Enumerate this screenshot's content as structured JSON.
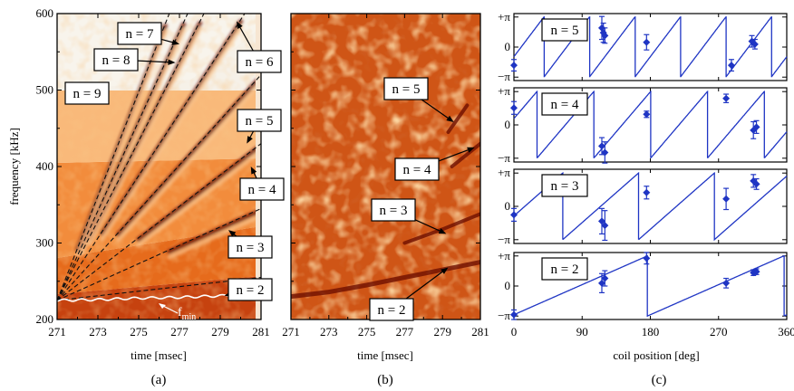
{
  "panel_a": {
    "label": "(a)",
    "xlabel": "time [msec]",
    "ylabel": "frequency [kHz]",
    "xticks": [
      "271",
      "273",
      "275",
      "277",
      "279",
      "281"
    ],
    "yticks": [
      "200",
      "300",
      "400",
      "500",
      "600"
    ],
    "fmin_label": "f",
    "fmin_sub": "min",
    "mode_labels": [
      "n = 2",
      "n = 3",
      "n = 4",
      "n = 5",
      "n = 6",
      "n = 7",
      "n = 8",
      "n = 9"
    ]
  },
  "panel_b": {
    "label": "(b)",
    "xlabel": "time [msec]",
    "xticks": [
      "271",
      "273",
      "275",
      "277",
      "279",
      "281"
    ],
    "mode_labels": [
      "n = 2",
      "n = 3",
      "n = 4",
      "n = 5"
    ]
  },
  "panel_c": {
    "label": "(c)",
    "xlabel": "coil position [deg]",
    "xticks": [
      "0",
      "90",
      "180",
      "270",
      "360"
    ],
    "yticks": [
      "+π",
      "0",
      "−π"
    ],
    "subplots": [
      "n = 5",
      "n = 4",
      "n = 3",
      "n = 2"
    ]
  },
  "colors": {
    "spectrogram_low": "#c23b0a",
    "spectrogram_mid": "#f08a3a",
    "spectrogram_high": "#fbd2a0",
    "ridge": "#6e0f00",
    "phase_line": "#1f35c4"
  },
  "chart_data": [
    {
      "type": "heatmap",
      "panel": "a",
      "xlabel": "time [msec]",
      "ylabel": "frequency [kHz]",
      "xlim": [
        271,
        281
      ],
      "ylim": [
        200,
        600
      ],
      "fmin_curve": {
        "t": [
          271,
          273,
          275,
          277,
          279,
          280
        ],
        "f": [
          225,
          226,
          228,
          229,
          231,
          232
        ]
      },
      "series": [
        {
          "name": "n = 2",
          "t": [
            271,
            281
          ],
          "f": [
            225,
            255
          ]
        },
        {
          "name": "n = 3",
          "t": [
            271,
            281
          ],
          "f": [
            225,
            345
          ]
        },
        {
          "name": "n = 4",
          "t": [
            271,
            281
          ],
          "f": [
            225,
            430
          ]
        },
        {
          "name": "n = 5",
          "t": [
            271,
            281
          ],
          "f": [
            225,
            520
          ]
        },
        {
          "name": "n = 6",
          "t": [
            271,
            280.2
          ],
          "f": [
            225,
            600
          ]
        },
        {
          "name": "n = 7",
          "t": [
            271,
            278.2
          ],
          "f": [
            225,
            600
          ]
        },
        {
          "name": "n = 8",
          "t": [
            271,
            277.4
          ],
          "f": [
            225,
            600
          ]
        },
        {
          "name": "n = 9",
          "t": [
            271,
            276.5
          ],
          "f": [
            225,
            600
          ]
        }
      ]
    },
    {
      "type": "heatmap",
      "panel": "b",
      "xlabel": "time [msec]",
      "xlim": [
        271,
        281
      ],
      "ylim": [
        200,
        600
      ],
      "series": [
        {
          "name": "n = 2",
          "t": [
            271,
            273,
            275,
            277,
            279,
            281
          ],
          "f": [
            230,
            236,
            245,
            255,
            265,
            275
          ]
        },
        {
          "name": "n = 3",
          "t": [
            277,
            279,
            281
          ],
          "f": [
            300,
            318,
            338
          ]
        },
        {
          "name": "n = 4",
          "t": [
            279.5,
            281
          ],
          "f": [
            400,
            430
          ]
        },
        {
          "name": "n = 5",
          "t": [
            279.3,
            280.3
          ],
          "f": [
            445,
            480
          ]
        }
      ]
    },
    {
      "type": "scatter",
      "panel": "c",
      "subplot": "n = 5",
      "xlabel": "coil position [deg]",
      "xlim": [
        0,
        360
      ],
      "ylim": [
        -3.5,
        3.5
      ],
      "fit_slope_per_deg": 0.1047,
      "fit_offset": -1.0,
      "points": [
        {
          "x": 0,
          "y": -1.9,
          "err": 0.6
        },
        {
          "x": 116,
          "y": 2.0,
          "err": 1.2
        },
        {
          "x": 118,
          "y": 1.5,
          "err": 1.0
        },
        {
          "x": 120,
          "y": 1.2,
          "err": 0.8
        },
        {
          "x": 175,
          "y": 0.5,
          "err": 0.8
        },
        {
          "x": 287,
          "y": -1.9,
          "err": 0.6
        },
        {
          "x": 314,
          "y": 0.6,
          "err": 0.6
        },
        {
          "x": 318,
          "y": 0.3,
          "err": 0.5
        }
      ]
    },
    {
      "type": "scatter",
      "panel": "c",
      "subplot": "n = 4",
      "xlabel": "coil position [deg]",
      "xlim": [
        0,
        360
      ],
      "ylim": [
        -3.5,
        3.5
      ],
      "fit_slope_per_deg": 0.0838,
      "fit_offset": 0.6,
      "points": [
        {
          "x": 0,
          "y": 1.6,
          "err": 0.6
        },
        {
          "x": 116,
          "y": -2.0,
          "err": 0.8
        },
        {
          "x": 120,
          "y": -2.6,
          "err": 1.0
        },
        {
          "x": 175,
          "y": 1.0,
          "err": 0.3
        },
        {
          "x": 280,
          "y": 2.5,
          "err": 0.4
        },
        {
          "x": 316,
          "y": -0.5,
          "err": 0.8
        },
        {
          "x": 320,
          "y": -0.2,
          "err": 0.6
        }
      ]
    },
    {
      "type": "scatter",
      "panel": "c",
      "subplot": "n = 3",
      "xlabel": "coil position [deg]",
      "xlim": [
        0,
        360
      ],
      "ylim": [
        -3.5,
        3.5
      ],
      "fit_slope_per_deg": 0.0628,
      "fit_offset": -0.9,
      "points": [
        {
          "x": 0,
          "y": -0.8,
          "err": 0.6
        },
        {
          "x": 116,
          "y": -1.4,
          "err": 1.2
        },
        {
          "x": 120,
          "y": -1.8,
          "err": 1.4
        },
        {
          "x": 175,
          "y": 1.3,
          "err": 0.6
        },
        {
          "x": 280,
          "y": 0.7,
          "err": 1.0
        },
        {
          "x": 316,
          "y": 2.4,
          "err": 0.6
        },
        {
          "x": 320,
          "y": 2.1,
          "err": 0.5
        }
      ]
    },
    {
      "type": "scatter",
      "panel": "c",
      "subplot": "n = 2",
      "xlabel": "coil position [deg]",
      "xlim": [
        0,
        360
      ],
      "ylim": [
        -3.5,
        3.5
      ],
      "fit_slope_per_deg": 0.0349,
      "fit_offset": -3.0,
      "points": [
        {
          "x": 0,
          "y": -3.0,
          "err": 0.5
        },
        {
          "x": 116,
          "y": 0.3,
          "err": 1.0
        },
        {
          "x": 120,
          "y": 0.8,
          "err": 0.8
        },
        {
          "x": 175,
          "y": 2.9,
          "err": 0.6
        },
        {
          "x": 280,
          "y": 0.3,
          "err": 0.5
        },
        {
          "x": 316,
          "y": 1.4,
          "err": 0.3
        },
        {
          "x": 320,
          "y": 1.5,
          "err": 0.3
        }
      ]
    }
  ]
}
